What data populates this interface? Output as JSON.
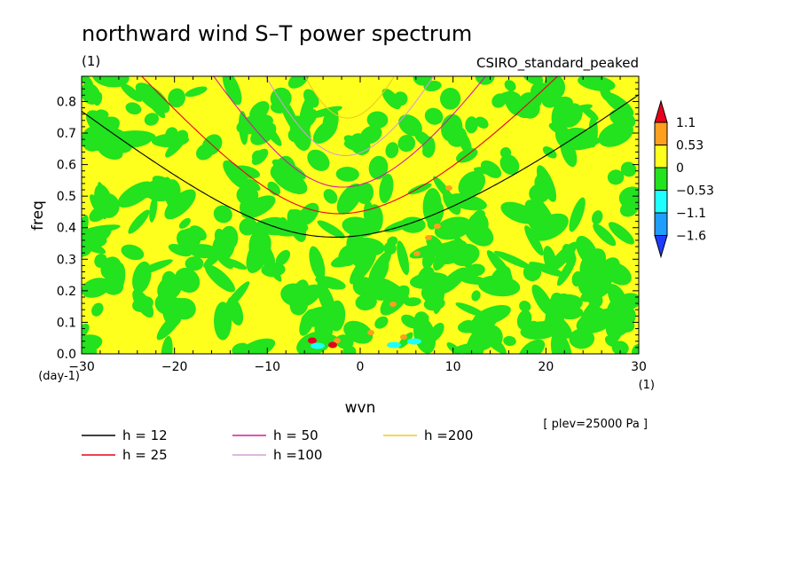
{
  "chart_data": {
    "type": "heatmap",
    "title": "northward wind S–T power spectrum",
    "subtitle_left": "(1)",
    "subtitle_right": "CSIRO_standard_peaked",
    "xlabel": "wvn",
    "ylabel": "freq",
    "x_unit": "(1)",
    "y_unit": "(day-1)",
    "xlim": [
      -30,
      30
    ],
    "ylim": [
      0,
      0.88
    ],
    "x_ticks": [
      -30,
      -20,
      -10,
      0,
      10,
      20,
      30
    ],
    "y_ticks": [
      0.0,
      0.1,
      0.2,
      0.3,
      0.4,
      0.5,
      0.6,
      0.7,
      0.8
    ],
    "x_tick_labels": [
      "−30",
      "−20",
      "−10",
      "0",
      "10",
      "20",
      "30"
    ],
    "y_tick_labels": [
      "0.0",
      "0.1",
      "0.2",
      "0.3",
      "0.4",
      "0.5",
      "0.6",
      "0.7",
      "0.8"
    ],
    "colorbar": {
      "levels": [
        "1.1",
        "0.53",
        "0",
        "−0.53",
        "−1.1",
        "−1.6"
      ],
      "colors": [
        "#e8001e",
        "#ff9f1e",
        "#ffff1e",
        "#23e21e",
        "#1effff",
        "#1e9eff",
        "#1e3cff"
      ]
    },
    "dispersion_curves": [
      {
        "name": "h = 12",
        "h": 12,
        "color": "#000000"
      },
      {
        "name": "h = 25",
        "h": 25,
        "color": "#e8001e"
      },
      {
        "name": "h = 50",
        "h": 50,
        "color": "#d21ea0"
      },
      {
        "name": "h =100",
        "h": 100,
        "color": "#d2a0d2"
      },
      {
        "name": "h =200",
        "h": 200,
        "color": "#f0c81e"
      }
    ],
    "annotation": "[ plev=25000 Pa ]"
  }
}
